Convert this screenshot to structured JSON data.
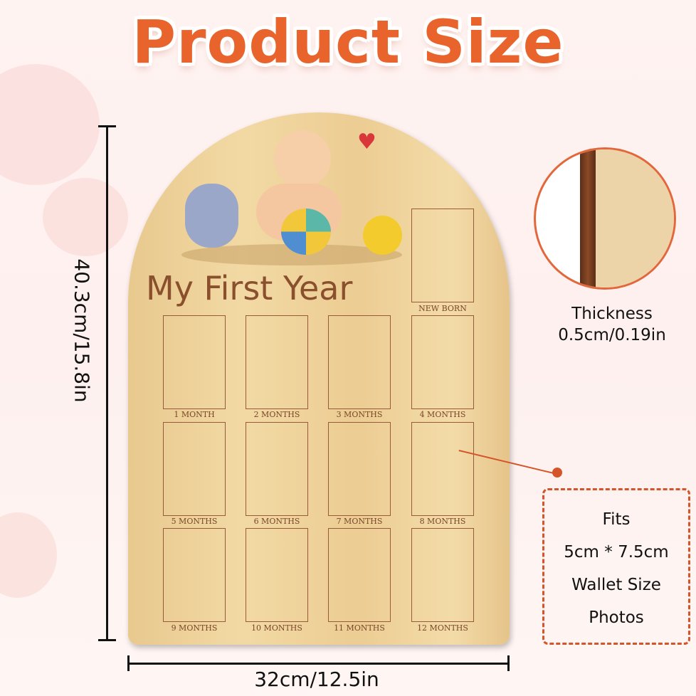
{
  "title": "Product Size",
  "board": {
    "heading": "My First Year",
    "frames": [
      "NEW BORN",
      "1 MONTH",
      "2 MONTHS",
      "3 MONTHS",
      "4 MONTHS",
      "5 MONTHS",
      "6 MONTHS",
      "7 MONTHS",
      "8 MONTHS",
      "9 MONTHS",
      "10 MONTHS",
      "11 MONTHS",
      "12 MONTHS"
    ]
  },
  "dimensions": {
    "height": "40.3cm/15.8in",
    "width": "32cm/12.5in"
  },
  "thickness": {
    "label": "Thickness",
    "value": "0.5cm/0.19in"
  },
  "fits": {
    "lines": [
      "Fits",
      "5cm * 7.5cm",
      "Wallet Size",
      "Photos"
    ]
  },
  "colors": {
    "accent": "#e8642c",
    "wood": "#f0d59f",
    "engrave": "#8a4f2c"
  }
}
